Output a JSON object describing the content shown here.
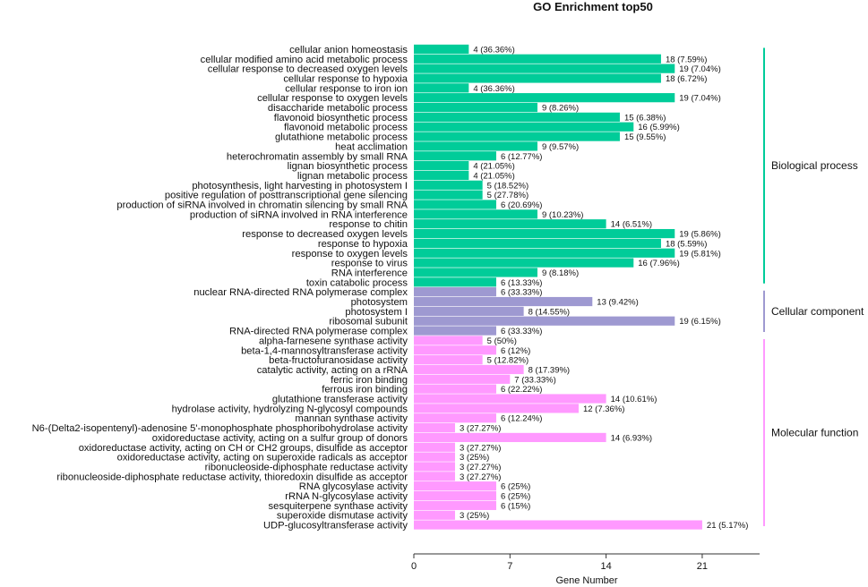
{
  "chart_data": {
    "type": "bar",
    "orientation": "horizontal",
    "title": "GO Enrichment top50",
    "xlabel": "Gene Number",
    "ylabel": "",
    "xlim": [
      0,
      25
    ],
    "xticks": [
      0,
      7,
      14,
      21
    ],
    "grid": false,
    "groups": [
      {
        "name": "Biological process",
        "color": "#00CC99",
        "bracket_color": "#00CC99"
      },
      {
        "name": "Cellular component",
        "color": "#9E99D1",
        "bracket_color": "#9E99D1"
      },
      {
        "name": "Molecular function",
        "color": "#FF99FF",
        "bracket_color": "#FF99FF"
      }
    ],
    "terms": [
      {
        "label": "cellular anion homeostasis",
        "value": 4,
        "text": "4 (36.36%)",
        "group": 0
      },
      {
        "label": "cellular modified amino acid metabolic process",
        "value": 18,
        "text": "18 (7.59%)",
        "group": 0
      },
      {
        "label": "cellular response to decreased oxygen levels",
        "value": 19,
        "text": "19 (7.04%)",
        "group": 0
      },
      {
        "label": "cellular response to hypoxia",
        "value": 18,
        "text": "18 (6.72%)",
        "group": 0
      },
      {
        "label": "cellular response to iron ion",
        "value": 4,
        "text": "4 (36.36%)",
        "group": 0
      },
      {
        "label": "cellular response to oxygen levels",
        "value": 19,
        "text": "19 (7.04%)",
        "group": 0
      },
      {
        "label": "disaccharide metabolic process",
        "value": 9,
        "text": "9 (8.26%)",
        "group": 0
      },
      {
        "label": "flavonoid biosynthetic process",
        "value": 15,
        "text": "15 (6.38%)",
        "group": 0
      },
      {
        "label": "flavonoid metabolic process",
        "value": 16,
        "text": "16 (5.99%)",
        "group": 0
      },
      {
        "label": "glutathione metabolic process",
        "value": 15,
        "text": "15 (9.55%)",
        "group": 0
      },
      {
        "label": "heat acclimation",
        "value": 9,
        "text": "9 (9.57%)",
        "group": 0
      },
      {
        "label": "heterochromatin assembly by small RNA",
        "value": 6,
        "text": "6 (12.77%)",
        "group": 0
      },
      {
        "label": "lignan biosynthetic process",
        "value": 4,
        "text": "4 (21.05%)",
        "group": 0
      },
      {
        "label": "lignan metabolic process",
        "value": 4,
        "text": "4 (21.05%)",
        "group": 0
      },
      {
        "label": "photosynthesis, light harvesting in photosystem I",
        "value": 5,
        "text": "5 (18.52%)",
        "group": 0
      },
      {
        "label": "positive regulation of posttranscriptional gene silencing",
        "value": 5,
        "text": "5 (27.78%)",
        "group": 0
      },
      {
        "label": "production of siRNA involved in chromatin silencing by small RNA",
        "value": 6,
        "text": "6 (20.69%)",
        "group": 0
      },
      {
        "label": "production of siRNA involved in RNA interference",
        "value": 9,
        "text": "9 (10.23%)",
        "group": 0
      },
      {
        "label": "response to chitin",
        "value": 14,
        "text": "14 (6.51%)",
        "group": 0
      },
      {
        "label": "response to decreased oxygen levels",
        "value": 19,
        "text": "19 (5.86%)",
        "group": 0
      },
      {
        "label": "response to hypoxia",
        "value": 18,
        "text": "18 (5.59%)",
        "group": 0
      },
      {
        "label": "response to oxygen levels",
        "value": 19,
        "text": "19 (5.81%)",
        "group": 0
      },
      {
        "label": "response to virus",
        "value": 16,
        "text": "16 (7.96%)",
        "group": 0
      },
      {
        "label": "RNA interference",
        "value": 9,
        "text": "9 (8.18%)",
        "group": 0
      },
      {
        "label": "toxin catabolic process",
        "value": 6,
        "text": "6 (13.33%)",
        "group": 0
      },
      {
        "label": "nuclear RNA-directed RNA polymerase complex",
        "value": 6,
        "text": "6 (33.33%)",
        "group": 1
      },
      {
        "label": "photosystem",
        "value": 13,
        "text": "13 (9.42%)",
        "group": 1
      },
      {
        "label": "photosystem I",
        "value": 8,
        "text": "8 (14.55%)",
        "group": 1
      },
      {
        "label": "ribosomal subunit",
        "value": 19,
        "text": "19 (6.15%)",
        "group": 1
      },
      {
        "label": "RNA-directed RNA polymerase complex",
        "value": 6,
        "text": "6 (33.33%)",
        "group": 1
      },
      {
        "label": "alpha-farnesene synthase activity",
        "value": 5,
        "text": "5 (50%)",
        "group": 2
      },
      {
        "label": "beta-1,4-mannosyltransferase activity",
        "value": 6,
        "text": "6 (12%)",
        "group": 2
      },
      {
        "label": "beta-fructofuranosidase activity",
        "value": 5,
        "text": "5 (12.82%)",
        "group": 2
      },
      {
        "label": "catalytic activity, acting on a rRNA",
        "value": 8,
        "text": "8 (17.39%)",
        "group": 2
      },
      {
        "label": "ferric iron binding",
        "value": 7,
        "text": "7 (33.33%)",
        "group": 2
      },
      {
        "label": "ferrous iron binding",
        "value": 6,
        "text": "6 (22.22%)",
        "group": 2
      },
      {
        "label": "glutathione transferase activity",
        "value": 14,
        "text": "14 (10.61%)",
        "group": 2
      },
      {
        "label": "hydrolase activity, hydrolyzing N-glycosyl compounds",
        "value": 12,
        "text": "12 (7.36%)",
        "group": 2
      },
      {
        "label": "mannan synthase activity",
        "value": 6,
        "text": "6 (12.24%)",
        "group": 2
      },
      {
        "label": "N6-(Delta2-isopentenyl)-adenosine 5'-monophosphate phosphoribohydrolase activity",
        "value": 3,
        "text": "3 (27.27%)",
        "group": 2
      },
      {
        "label": "oxidoreductase activity, acting on a sulfur group of donors",
        "value": 14,
        "text": "14 (6.93%)",
        "group": 2
      },
      {
        "label": "oxidoreductase activity, acting on CH or CH2 groups, disulfide as acceptor",
        "value": 3,
        "text": "3 (27.27%)",
        "group": 2
      },
      {
        "label": "oxidoreductase activity, acting on superoxide radicals as acceptor",
        "value": 3,
        "text": "3 (25%)",
        "group": 2
      },
      {
        "label": "ribonucleoside-diphosphate reductase activity",
        "value": 3,
        "text": "3 (27.27%)",
        "group": 2
      },
      {
        "label": "ribonucleoside-diphosphate reductase activity, thioredoxin disulfide as acceptor",
        "value": 3,
        "text": "3 (27.27%)",
        "group": 2
      },
      {
        "label": "RNA glycosylase activity",
        "value": 6,
        "text": "6 (25%)",
        "group": 2
      },
      {
        "label": "rRNA N-glycosylase activity",
        "value": 6,
        "text": "6 (25%)",
        "group": 2
      },
      {
        "label": "sesquiterpene synthase activity",
        "value": 6,
        "text": "6 (15%)",
        "group": 2
      },
      {
        "label": "superoxide dismutase activity",
        "value": 3,
        "text": "3 (25%)",
        "group": 2
      },
      {
        "label": "UDP-glucosyltransferase activity",
        "value": 21,
        "text": "21 (5.17%)",
        "group": 2
      }
    ]
  }
}
